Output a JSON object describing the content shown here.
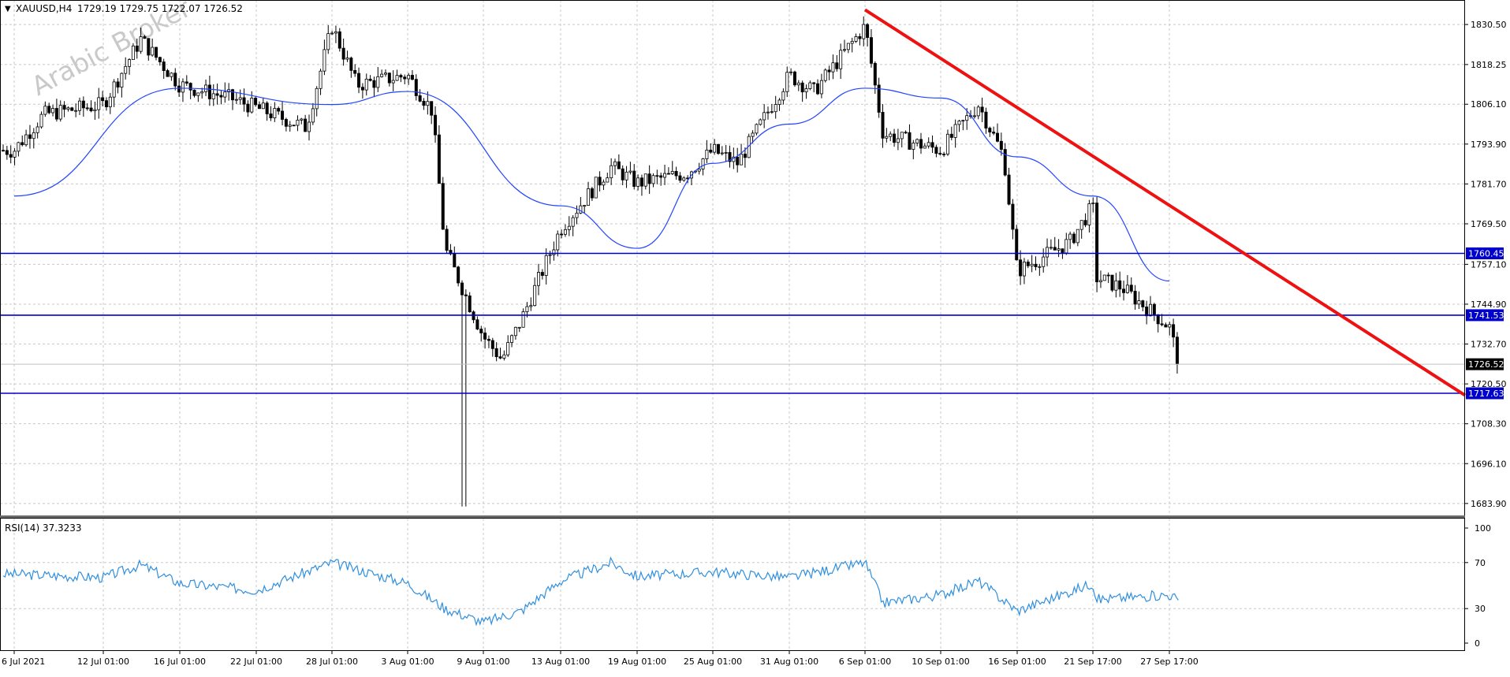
{
  "header": {
    "dropdown_glyph": "▼",
    "symbol": "XAUUSD,H4",
    "ohlc": "1729.19 1729.75 1722.07 1726.52"
  },
  "watermark": "Arabic Broker",
  "rsi_label": "RSI(14) 37.3233",
  "colors": {
    "candles": "#000000",
    "moving_average": "#2244ff",
    "levels": "#0000cc",
    "trendline": "#ee1111",
    "rsi": "#2f8fdf",
    "grid": "#c8c8c8",
    "current_price_bg": "#000000"
  },
  "price_axis": {
    "ticks": [
      "1830.50",
      "1818.25",
      "1806.10",
      "1793.90",
      "1781.70",
      "1769.50",
      "1757.10",
      "1744.90",
      "1732.70",
      "1720.50",
      "1708.30",
      "1696.10",
      "1683.90"
    ],
    "current_price": "1726.52",
    "levels": [
      "1760.45",
      "1741.53",
      "1717.63"
    ]
  },
  "rsi_axis": {
    "ticks": [
      "100",
      "70",
      "30",
      "0"
    ]
  },
  "time_axis": {
    "ticks": [
      "6 Jul 2021",
      "12 Jul 01:00",
      "16 Jul 01:00",
      "22 Jul 01:00",
      "28 Jul 01:00",
      "3 Aug 01:00",
      "9 Aug 01:00",
      "13 Aug 01:00",
      "19 Aug 01:00",
      "25 Aug 01:00",
      "31 Aug 01:00",
      "6 Sep 01:00",
      "10 Sep 01:00",
      "16 Sep 01:00",
      "21 Sep 17:00",
      "27 Sep 17:00"
    ]
  },
  "chart_data": {
    "type": "candlestick",
    "symbol": "XAUUSD",
    "timeframe": "H4",
    "ylim": [
      1680,
      1838
    ],
    "close_path": [
      [
        "6 Jul 2021",
        1792
      ],
      [
        "8 Jul 2021",
        1803
      ],
      [
        "12 Jul 01:00",
        1806
      ],
      [
        "14 Jul 2021",
        1826
      ],
      [
        "16 Jul 01:00",
        1812
      ],
      [
        "20 Jul 2021",
        1808
      ],
      [
        "22 Jul 01:00",
        1805
      ],
      [
        "26 Jul 2021",
        1799
      ],
      [
        "28 Jul 01:00",
        1830
      ],
      [
        "30 Jul 2021",
        1812
      ],
      [
        "3 Aug 01:00",
        1815
      ],
      [
        "5 Aug 2021",
        1804
      ],
      [
        "6 Aug 2021",
        1762
      ],
      [
        "9 Aug 01:00",
        1735
      ],
      [
        "10 Aug 2021",
        1728
      ],
      [
        "11 Aug 2021",
        1740
      ],
      [
        "13 Aug 01:00",
        1768
      ],
      [
        "17 Aug 2021",
        1787
      ],
      [
        "19 Aug 01:00",
        1782
      ],
      [
        "23 Aug 2021",
        1785
      ],
      [
        "25 Aug 01:00",
        1792
      ],
      [
        "27 Aug 2021",
        1788
      ],
      [
        "31 Aug 01:00",
        1815
      ],
      [
        "2 Sep 2021",
        1810
      ],
      [
        "6 Sep 01:00",
        1830
      ],
      [
        "7 Sep 2021",
        1797
      ],
      [
        "10 Sep 01:00",
        1792
      ],
      [
        "13 Sep 2021",
        1806
      ],
      [
        "15 Sep 2021",
        1790
      ],
      [
        "16 Sep 01:00",
        1755
      ],
      [
        "20 Sep 2021",
        1764
      ],
      [
        "21 Sep 17:00",
        1775
      ],
      [
        "22 Sep 2021",
        1753
      ],
      [
        "24 Sep 2021",
        1750
      ],
      [
        "27 Sep 17:00",
        1738
      ],
      [
        "29 Sep 2021",
        1726.52
      ]
    ],
    "moving_average": [
      [
        "6 Jul 2021",
        1778
      ],
      [
        "16 Jul 01:00",
        1811
      ],
      [
        "28 Jul 01:00",
        1806
      ],
      [
        "3 Aug 01:00",
        1810
      ],
      [
        "13 Aug 01:00",
        1775
      ],
      [
        "19 Aug 01:00",
        1762
      ],
      [
        "25 Aug 01:00",
        1788
      ],
      [
        "31 Aug 01:00",
        1800
      ],
      [
        "6 Sep 01:00",
        1811
      ],
      [
        "10 Sep 01:00",
        1808
      ],
      [
        "16 Sep 01:00",
        1790
      ],
      [
        "21 Sep 17:00",
        1778
      ],
      [
        "27 Sep 17:00",
        1752
      ]
    ],
    "horizontal_levels": [
      1760.45,
      1741.53,
      1717.63
    ],
    "trendline": [
      [
        "6 Sep 01:00",
        1835
      ],
      [
        "30 Sep 2021",
        1717
      ]
    ],
    "rsi": {
      "period": 14,
      "last": 37.3233,
      "ylim": [
        0,
        100
      ],
      "reference_lines": [
        70,
        30
      ],
      "path": [
        [
          "6 Jul 2021",
          60
        ],
        [
          "12 Jul 01:00",
          57
        ],
        [
          "14 Jul 2021",
          68
        ],
        [
          "16 Jul 01:00",
          52
        ],
        [
          "22 Jul 01:00",
          46
        ],
        [
          "28 Jul 01:00",
          70
        ],
        [
          "3 Aug 01:00",
          52
        ],
        [
          "6 Aug 2021",
          30
        ],
        [
          "9 Aug 01:00",
          18
        ],
        [
          "11 Aug 2021",
          28
        ],
        [
          "13 Aug 01:00",
          54
        ],
        [
          "17 Aug 2021",
          70
        ],
        [
          "19 Aug 01:00",
          58
        ],
        [
          "25 Aug 01:00",
          62
        ],
        [
          "31 Aug 01:00",
          57
        ],
        [
          "6 Sep 01:00",
          70
        ],
        [
          "7 Sep 2021",
          35
        ],
        [
          "10 Sep 01:00",
          42
        ],
        [
          "13 Sep 2021",
          54
        ],
        [
          "16 Sep 01:00",
          28
        ],
        [
          "21 Sep 17:00",
          52
        ],
        [
          "22 Sep 2021",
          38
        ],
        [
          "27 Sep 17:00",
          42
        ],
        [
          "29 Sep 2021",
          37.32
        ]
      ]
    }
  }
}
